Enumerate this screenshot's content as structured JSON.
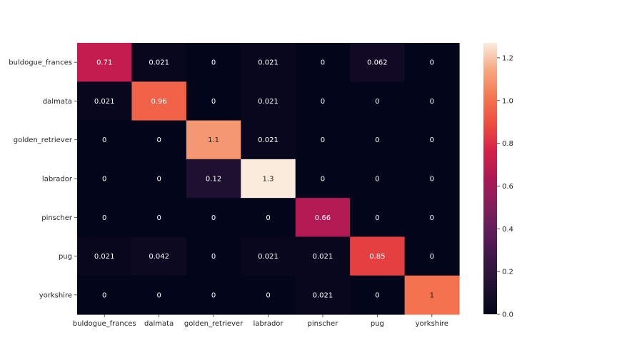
{
  "chart_data": {
    "type": "heatmap",
    "title": "",
    "xlabel": "",
    "ylabel": "",
    "categories_x": [
      "buldogue_frances",
      "dalmata",
      "golden_retriever",
      "labrador",
      "pinscher",
      "pug",
      "yorkshire"
    ],
    "categories_y": [
      "buldogue_frances",
      "dalmata",
      "golden_retriever",
      "labrador",
      "pinscher",
      "pug",
      "yorkshire"
    ],
    "values": [
      [
        0.71,
        0.021,
        0,
        0.021,
        0,
        0.062,
        0
      ],
      [
        0.021,
        0.96,
        0,
        0.021,
        0,
        0,
        0
      ],
      [
        0,
        0,
        1.1,
        0.021,
        0,
        0,
        0
      ],
      [
        0,
        0,
        0.12,
        1.3,
        0,
        0,
        0
      ],
      [
        0,
        0,
        0,
        0,
        0.66,
        0,
        0
      ],
      [
        0.021,
        0.042,
        0,
        0.021,
        0.021,
        0.85,
        0
      ],
      [
        0,
        0,
        0,
        0,
        0.021,
        0,
        1
      ]
    ],
    "annotations": [
      [
        "0.71",
        "0.021",
        "0",
        "0.021",
        "0",
        "0.062",
        "0"
      ],
      [
        "0.021",
        "0.96",
        "0",
        "0.021",
        "0",
        "0",
        "0"
      ],
      [
        "0",
        "0",
        "1.1",
        "0.021",
        "0",
        "0",
        "0"
      ],
      [
        "0",
        "0",
        "0.12",
        "1.3",
        "0",
        "0",
        "0"
      ],
      [
        "0",
        "0",
        "0",
        "0",
        "0.66",
        "0",
        "0"
      ],
      [
        "0.021",
        "0.042",
        "0",
        "0.021",
        "0.021",
        "0.85",
        "0"
      ],
      [
        "0",
        "0",
        "0",
        "0",
        "0.021",
        "0",
        "1"
      ]
    ],
    "colorbar": {
      "range": [
        0,
        1.27
      ],
      "ticks": [
        0,
        0.2,
        0.4,
        0.6,
        0.8,
        1.0,
        1.2
      ],
      "tick_labels": [
        "0.0",
        "0.2",
        "0.4",
        "0.6",
        "0.8",
        "1.0",
        "1.2"
      ],
      "colormap": "rocket"
    },
    "grid": false
  }
}
